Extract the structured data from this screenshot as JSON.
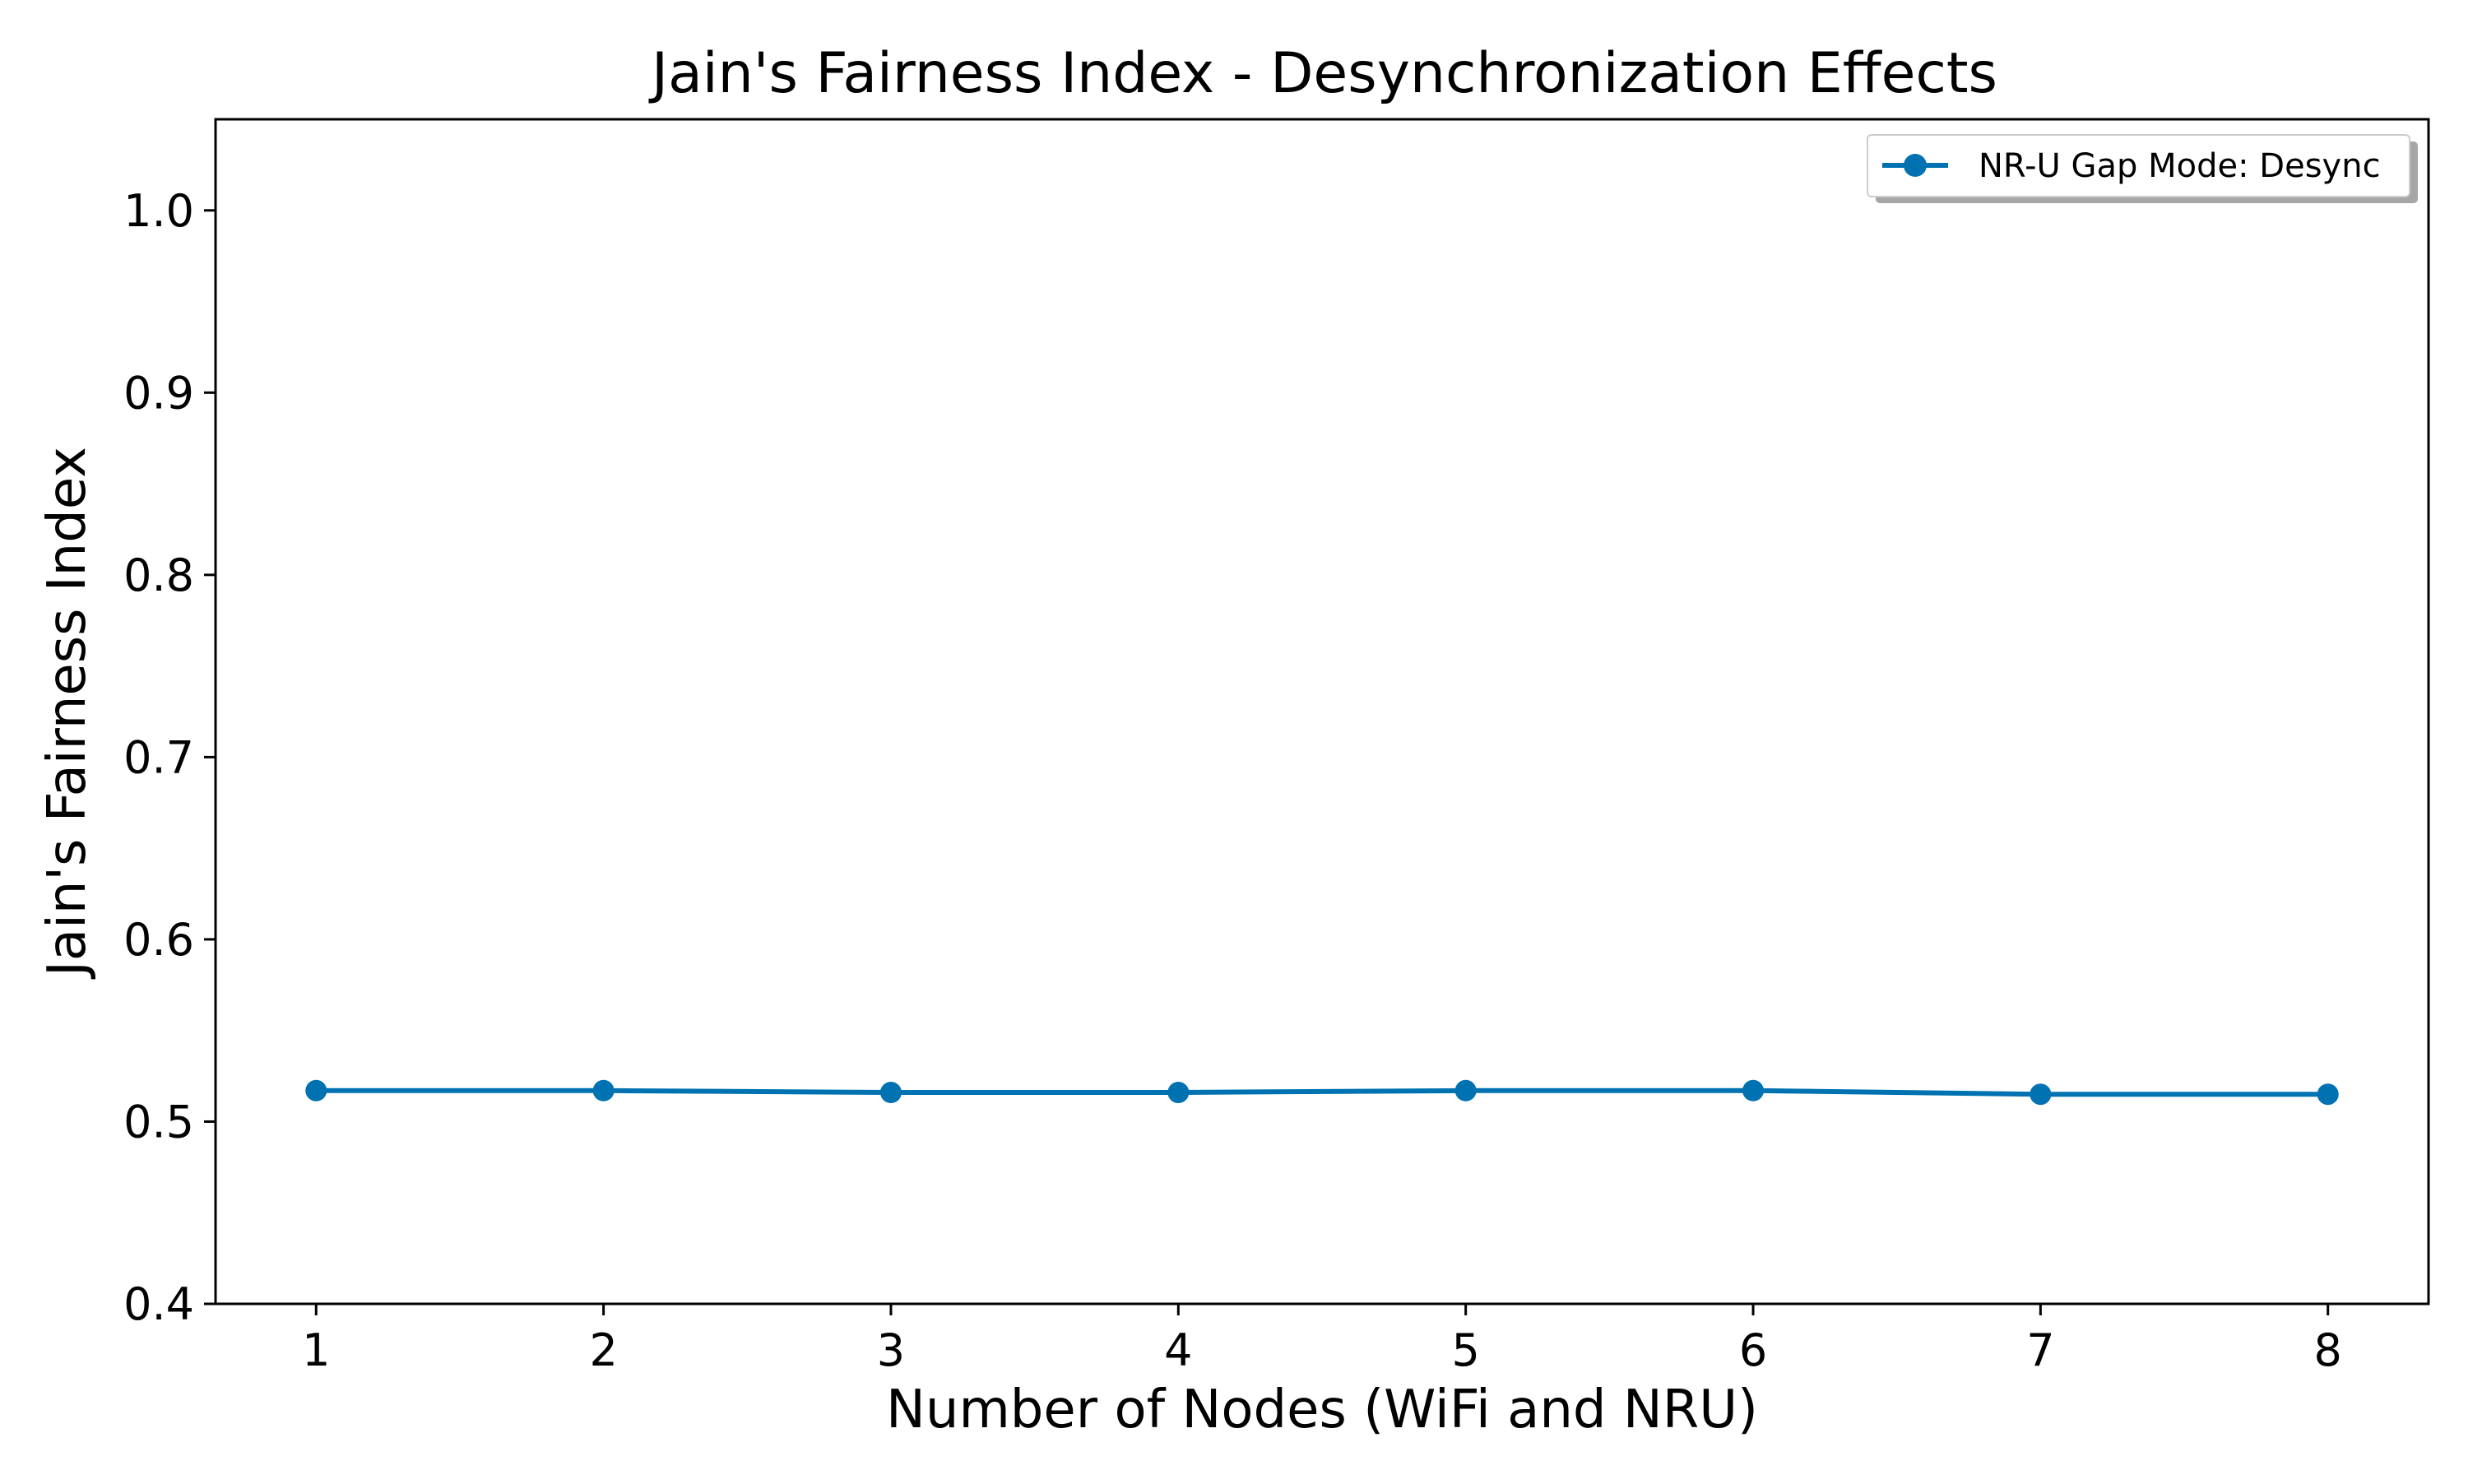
{
  "chart_data": {
    "type": "line",
    "title": "Jain's Fairness Index - Desynchronization Effects",
    "xlabel": "Number of Nodes (WiFi and NRU)",
    "ylabel": "Jain's Fairness Index",
    "x": [
      1,
      2,
      3,
      4,
      5,
      6,
      7,
      8
    ],
    "x_tick_labels": [
      "1",
      "2",
      "3",
      "4",
      "5",
      "6",
      "7",
      "8"
    ],
    "y_ticks": [
      0.4,
      0.5,
      0.6,
      0.7,
      0.8,
      0.9,
      1.0
    ],
    "y_tick_labels": [
      "0.4",
      "0.5",
      "0.6",
      "0.7",
      "0.8",
      "0.9",
      "1.0"
    ],
    "xlim": [
      0.65,
      8.35
    ],
    "ylim": [
      0.4,
      1.05
    ],
    "grid": false,
    "legend_position": "top-right",
    "series": [
      {
        "name": "NR-U Gap Mode: Desync",
        "color": "#0072B2",
        "marker": "circle",
        "values": [
          0.517,
          0.517,
          0.516,
          0.516,
          0.517,
          0.517,
          0.515,
          0.515
        ]
      }
    ]
  }
}
